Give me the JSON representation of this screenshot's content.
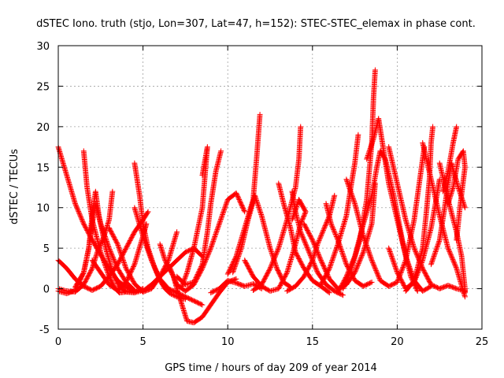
{
  "chart_data": {
    "type": "scatter",
    "title": "dSTEC Iono. truth (stjo, Lon=307, Lat=47, h=152): STEC-STEC_elemax in phase cont.",
    "xlabel": "GPS time / hours of day 209 of year 2014",
    "ylabel": "dSTEC  / TECUs",
    "xlim": [
      0,
      25
    ],
    "ylim": [
      -5,
      30
    ],
    "x_ticks": [
      0,
      5,
      10,
      15,
      20,
      25
    ],
    "y_ticks": [
      -5,
      0,
      5,
      10,
      15,
      20,
      25,
      30
    ],
    "grid": true,
    "marker": "+",
    "color": "#ff0000",
    "arcs": [
      [
        [
          0.0,
          17.5
        ],
        [
          0.5,
          14.0
        ],
        [
          1.0,
          10.5
        ],
        [
          1.5,
          8.0
        ],
        [
          2.0,
          6.0
        ],
        [
          2.5,
          4.2
        ],
        [
          3.0,
          2.5
        ],
        [
          3.5,
          1.0
        ],
        [
          4.0,
          0.2
        ],
        [
          4.5,
          -0.4
        ],
        [
          5.0,
          0.0
        ]
      ],
      [
        [
          0.0,
          3.5
        ],
        [
          0.5,
          2.5
        ],
        [
          1.0,
          1.2
        ],
        [
          1.5,
          0.3
        ],
        [
          2.0,
          -0.2
        ],
        [
          2.5,
          0.3
        ],
        [
          3.0,
          1.5
        ],
        [
          3.5,
          3.0
        ],
        [
          4.0,
          5.0
        ],
        [
          4.5,
          7.0
        ],
        [
          5.0,
          8.5
        ],
        [
          5.3,
          9.5
        ]
      ],
      [
        [
          0.0,
          0.0
        ],
        [
          0.5,
          -0.3
        ],
        [
          1.0,
          -0.4
        ],
        [
          1.5,
          0.5
        ],
        [
          2.0,
          2.5
        ],
        [
          2.3,
          4.5
        ],
        [
          2.7,
          6.5
        ],
        [
          3.0,
          8.5
        ],
        [
          3.2,
          12.0
        ]
      ],
      [
        [
          0.0,
          -0.3
        ],
        [
          0.5,
          -0.6
        ],
        [
          1.0,
          -0.2
        ],
        [
          1.5,
          2.0
        ],
        [
          1.8,
          5.0
        ],
        [
          2.0,
          8.0
        ],
        [
          2.2,
          10.5
        ],
        [
          2.5,
          8.0
        ],
        [
          3.0,
          5.0
        ],
        [
          3.5,
          2.5
        ],
        [
          4.0,
          0.8
        ],
        [
          4.5,
          -0.2
        ]
      ],
      [
        [
          1.0,
          0.2
        ],
        [
          1.5,
          2.0
        ],
        [
          1.8,
          5.0
        ],
        [
          2.0,
          9.0
        ],
        [
          2.2,
          12.0
        ],
        [
          2.4,
          9.0
        ],
        [
          2.8,
          5.0
        ],
        [
          3.2,
          2.0
        ],
        [
          3.6,
          0.3
        ],
        [
          4.0,
          -0.4
        ],
        [
          4.5,
          -0.5
        ],
        [
          5.0,
          -0.2
        ]
      ],
      [
        [
          1.5,
          17.0
        ],
        [
          1.7,
          12.5
        ],
        [
          2.0,
          8.5
        ],
        [
          2.5,
          4.5
        ],
        [
          3.0,
          1.5
        ],
        [
          3.3,
          0.2
        ],
        [
          3.6,
          -0.5
        ],
        [
          4.0,
          -0.4
        ],
        [
          4.5,
          -0.3
        ]
      ],
      [
        [
          3.0,
          7.5
        ],
        [
          3.5,
          5.5
        ],
        [
          4.0,
          2.5
        ],
        [
          4.5,
          0.6
        ],
        [
          5.0,
          -0.4
        ],
        [
          5.5,
          0.0
        ],
        [
          6.0,
          1.5
        ],
        [
          6.5,
          3.5
        ],
        [
          7.0,
          7.0
        ]
      ],
      [
        [
          4.5,
          15.5
        ],
        [
          4.8,
          11.5
        ],
        [
          5.0,
          8.0
        ],
        [
          5.3,
          5.0
        ],
        [
          5.7,
          2.5
        ],
        [
          6.0,
          1.0
        ],
        [
          6.3,
          0.0
        ],
        [
          6.6,
          -0.6
        ],
        [
          7.0,
          -1.0
        ],
        [
          7.5,
          -1.3
        ]
      ],
      [
        [
          4.5,
          10.0
        ],
        [
          5.0,
          6.5
        ],
        [
          5.5,
          3.5
        ],
        [
          6.0,
          1.2
        ],
        [
          6.5,
          0.0
        ],
        [
          7.0,
          -0.5
        ],
        [
          7.5,
          -1.0
        ],
        [
          8.0,
          -1.5
        ],
        [
          8.5,
          -2.0
        ]
      ],
      [
        [
          5.0,
          -0.3
        ],
        [
          5.5,
          0.5
        ],
        [
          6.0,
          1.5
        ],
        [
          6.5,
          2.5
        ],
        [
          7.0,
          3.5
        ],
        [
          7.5,
          4.5
        ],
        [
          8.0,
          5.0
        ],
        [
          8.5,
          4.0
        ]
      ],
      [
        [
          6.0,
          5.5
        ],
        [
          6.3,
          3.5
        ],
        [
          6.8,
          1.5
        ],
        [
          7.0,
          0.0
        ],
        [
          7.3,
          -2.0
        ],
        [
          7.6,
          -4.0
        ],
        [
          8.0,
          -4.2
        ],
        [
          8.5,
          -3.5
        ],
        [
          9.0,
          -2.0
        ],
        [
          9.5,
          -0.5
        ],
        [
          10.0,
          0.8
        ],
        [
          10.5,
          1.2
        ]
      ],
      [
        [
          6.5,
          3.0
        ],
        [
          7.0,
          0.5
        ],
        [
          7.5,
          -0.3
        ],
        [
          8.0,
          0.5
        ],
        [
          8.5,
          2.5
        ],
        [
          9.0,
          5.0
        ],
        [
          9.5,
          8.0
        ],
        [
          10.0,
          11.0
        ],
        [
          10.5,
          11.8
        ],
        [
          11.0,
          9.5
        ]
      ],
      [
        [
          7.0,
          1.5
        ],
        [
          7.5,
          0.5
        ],
        [
          8.0,
          0.8
        ],
        [
          8.5,
          3.0
        ],
        [
          8.8,
          7.0
        ],
        [
          9.0,
          10.5
        ],
        [
          9.3,
          14.5
        ],
        [
          9.6,
          17.0
        ]
      ],
      [
        [
          8.5,
          14.0
        ],
        [
          8.8,
          17.5
        ],
        [
          8.5,
          10.0
        ],
        [
          8.0,
          5.0
        ],
        [
          7.6,
          2.0
        ],
        [
          7.3,
          0.3
        ]
      ],
      [
        [
          9.0,
          -0.5
        ],
        [
          9.5,
          0.0
        ],
        [
          10.0,
          1.0
        ],
        [
          10.5,
          0.7
        ],
        [
          11.0,
          0.3
        ],
        [
          11.5,
          0.6
        ],
        [
          12.0,
          0.0
        ]
      ],
      [
        [
          10.0,
          1.8
        ],
        [
          10.5,
          4.0
        ],
        [
          11.0,
          7.5
        ],
        [
          11.5,
          11.0
        ],
        [
          11.7,
          16.0
        ],
        [
          11.9,
          21.5
        ]
      ],
      [
        [
          10.3,
          2.0
        ],
        [
          10.8,
          5.0
        ],
        [
          11.2,
          8.5
        ],
        [
          11.6,
          11.5
        ],
        [
          12.0,
          9.0
        ],
        [
          12.5,
          5.0
        ],
        [
          12.9,
          2.5
        ],
        [
          13.3,
          0.8
        ],
        [
          13.7,
          0.2
        ]
      ],
      [
        [
          11.5,
          -0.2
        ],
        [
          12.0,
          0.5
        ],
        [
          12.5,
          2.5
        ],
        [
          13.0,
          5.0
        ],
        [
          13.5,
          8.5
        ],
        [
          14.0,
          12.5
        ],
        [
          14.2,
          16.0
        ],
        [
          14.3,
          20.0
        ]
      ],
      [
        [
          13.0,
          13.0
        ],
        [
          13.3,
          10.5
        ],
        [
          13.7,
          7.5
        ],
        [
          14.0,
          4.5
        ],
        [
          14.5,
          2.5
        ],
        [
          15.0,
          1.0
        ],
        [
          15.5,
          0.3
        ],
        [
          16.0,
          -0.5
        ]
      ],
      [
        [
          13.8,
          12.0
        ],
        [
          14.0,
          9.5
        ],
        [
          14.3,
          7.0
        ],
        [
          14.8,
          4.5
        ],
        [
          15.3,
          2.0
        ],
        [
          15.8,
          0.5
        ],
        [
          16.3,
          -0.3
        ],
        [
          16.8,
          -0.8
        ]
      ],
      [
        [
          14.5,
          8.0
        ],
        [
          15.0,
          6.0
        ],
        [
          15.5,
          3.5
        ],
        [
          16.0,
          1.2
        ],
        [
          16.5,
          0.0
        ],
        [
          17.0,
          0.5
        ],
        [
          17.5,
          2.0
        ],
        [
          18.0,
          4.5
        ],
        [
          18.5,
          8.0
        ],
        [
          18.7,
          13.0
        ]
      ],
      [
        [
          15.5,
          0.5
        ],
        [
          16.0,
          2.5
        ],
        [
          16.5,
          5.5
        ],
        [
          17.0,
          9.0
        ],
        [
          17.3,
          13.0
        ],
        [
          17.5,
          15.5
        ],
        [
          17.7,
          19.0
        ]
      ],
      [
        [
          15.8,
          10.5
        ],
        [
          16.1,
          8.0
        ],
        [
          16.5,
          6.0
        ],
        [
          17.0,
          3.0
        ],
        [
          17.5,
          1.0
        ],
        [
          18.0,
          0.3
        ],
        [
          18.5,
          0.8
        ]
      ],
      [
        [
          16.5,
          -0.5
        ],
        [
          17.0,
          1.5
        ],
        [
          17.5,
          4.0
        ],
        [
          18.0,
          8.0
        ],
        [
          18.5,
          11.5
        ],
        [
          18.8,
          15.0
        ],
        [
          19.0,
          17.0
        ],
        [
          19.3,
          16.0
        ],
        [
          19.8,
          11.5
        ],
        [
          20.3,
          6.0
        ],
        [
          20.8,
          1.5
        ],
        [
          21.2,
          -0.3
        ]
      ],
      [
        [
          16.8,
          0.0
        ],
        [
          17.3,
          2.5
        ],
        [
          17.8,
          6.0
        ],
        [
          18.2,
          11.0
        ],
        [
          18.5,
          18.0
        ],
        [
          18.6,
          23.5
        ],
        [
          18.7,
          27.0
        ]
      ],
      [
        [
          17.0,
          13.5
        ],
        [
          17.5,
          10.5
        ],
        [
          18.0,
          6.5
        ],
        [
          18.5,
          3.5
        ],
        [
          19.0,
          1.0
        ],
        [
          19.5,
          0.3
        ],
        [
          20.0,
          0.8
        ],
        [
          20.5,
          3.5
        ],
        [
          21.0,
          8.5
        ],
        [
          21.3,
          13.0
        ],
        [
          21.6,
          17.5
        ]
      ],
      [
        [
          18.2,
          16.0
        ],
        [
          18.6,
          18.5
        ],
        [
          18.9,
          21.0
        ],
        [
          19.2,
          17.0
        ],
        [
          19.5,
          13.0
        ],
        [
          20.0,
          8.5
        ],
        [
          20.5,
          4.0
        ],
        [
          21.0,
          1.0
        ],
        [
          21.5,
          -0.3
        ],
        [
          22.0,
          0.3
        ]
      ],
      [
        [
          19.5,
          5.0
        ],
        [
          20.0,
          2.0
        ],
        [
          20.5,
          0.0
        ],
        [
          21.0,
          0.8
        ],
        [
          21.5,
          3.5
        ],
        [
          22.0,
          7.5
        ],
        [
          22.3,
          11.0
        ],
        [
          22.5,
          13.5
        ]
      ],
      [
        [
          19.5,
          17.5
        ],
        [
          20.0,
          13.0
        ],
        [
          20.5,
          8.5
        ],
        [
          21.0,
          5.0
        ],
        [
          21.5,
          2.5
        ],
        [
          22.0,
          0.5
        ],
        [
          22.5,
          0.0
        ],
        [
          23.0,
          0.4
        ],
        [
          23.5,
          0.0
        ],
        [
          24.0,
          -0.3
        ]
      ],
      [
        [
          20.5,
          -0.3
        ],
        [
          21.0,
          1.0
        ],
        [
          21.5,
          5.0
        ],
        [
          21.7,
          9.0
        ],
        [
          21.9,
          13.5
        ],
        [
          22.0,
          18.0
        ],
        [
          22.1,
          20.0
        ]
      ],
      [
        [
          21.5,
          18.0
        ],
        [
          22.0,
          13.5
        ],
        [
          22.5,
          9.0
        ],
        [
          23.0,
          5.0
        ],
        [
          23.5,
          2.5
        ],
        [
          24.0,
          -1.0
        ]
      ],
      [
        [
          22.0,
          3.0
        ],
        [
          22.5,
          6.0
        ],
        [
          22.8,
          10.0
        ],
        [
          23.0,
          13.0
        ],
        [
          23.2,
          15.5
        ],
        [
          23.6,
          12.5
        ],
        [
          24.0,
          10.0
        ]
      ],
      [
        [
          22.5,
          15.5
        ],
        [
          23.0,
          11.0
        ],
        [
          23.5,
          7.0
        ],
        [
          23.8,
          4.0
        ],
        [
          24.0,
          0.0
        ],
        [
          24.0,
          -0.5
        ]
      ],
      [
        [
          22.7,
          12.0
        ],
        [
          23.0,
          14.5
        ],
        [
          23.3,
          18.0
        ],
        [
          23.5,
          20.0
        ]
      ],
      [
        [
          23.0,
          10.5
        ],
        [
          23.3,
          12.5
        ],
        [
          23.6,
          16.0
        ],
        [
          23.9,
          17.0
        ],
        [
          24.0,
          15.0
        ],
        [
          23.7,
          10.0
        ],
        [
          23.5,
          6.0
        ]
      ],
      [
        [
          2.0,
          3.5
        ],
        [
          2.5,
          2.0
        ],
        [
          3.0,
          0.5
        ],
        [
          3.5,
          -0.2
        ],
        [
          4.0,
          0.8
        ],
        [
          4.5,
          3.0
        ],
        [
          5.0,
          6.5
        ],
        [
          5.2,
          8.0
        ]
      ],
      [
        [
          11.0,
          3.5
        ],
        [
          11.5,
          1.5
        ],
        [
          12.0,
          0.3
        ],
        [
          12.5,
          -0.3
        ],
        [
          13.0,
          0.0
        ],
        [
          13.5,
          2.0
        ],
        [
          14.0,
          5.5
        ],
        [
          14.3,
          8.0
        ],
        [
          14.6,
          9.5
        ],
        [
          14.2,
          11.0
        ],
        [
          13.8,
          8.5
        ]
      ],
      [
        [
          13.5,
          -0.3
        ],
        [
          14.0,
          0.3
        ],
        [
          14.5,
          1.5
        ],
        [
          15.0,
          3.5
        ],
        [
          15.3,
          5.5
        ],
        [
          15.7,
          7.5
        ],
        [
          16.0,
          9.0
        ],
        [
          16.3,
          11.5
        ]
      ]
    ]
  }
}
